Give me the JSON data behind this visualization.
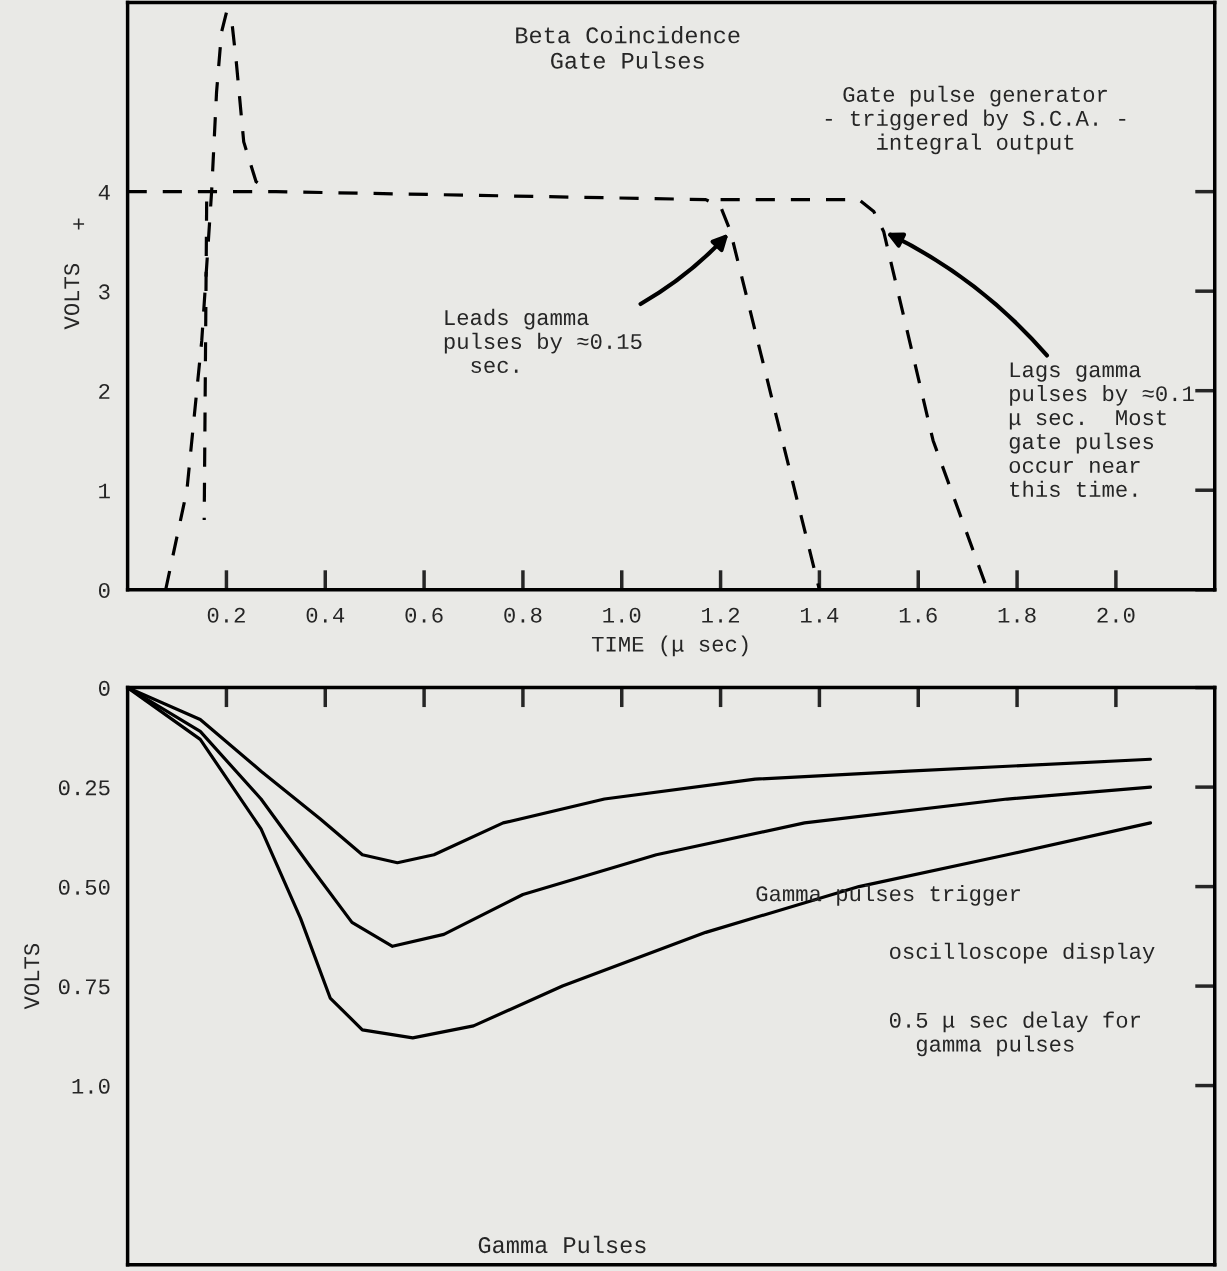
{
  "chart_data": [
    {
      "type": "line",
      "title": "Beta Coincidence\nGate Pulses",
      "xlabel": "TIME (μ sec)",
      "ylabel": "VOLTS",
      "xlim": [
        0,
        2.2
      ],
      "ylim": [
        0,
        5.9
      ],
      "xticks": [
        0.2,
        0.4,
        0.6,
        0.8,
        {
          "value": 1.0,
          "label": "1.0"
        },
        1.2,
        1.4,
        1.6,
        1.8,
        {
          "value": 2.0,
          "label": "2.0"
        }
      ],
      "yticks": [
        0,
        1,
        2,
        3,
        4
      ],
      "grid": false,
      "legend": false,
      "line_style": "dashed",
      "marker": "none",
      "series": [
        {
          "color": "#000000",
          "x": [
            0.077,
            0.12,
            0.15,
            0.17,
            0.18,
            0.19,
            0.2,
            0.21,
            0.22,
            0.235,
            0.26,
            0.29
          ],
          "values": [
            0,
            1,
            2.5,
            4,
            5,
            5.6,
            5.8,
            5.75,
            5.3,
            4.5,
            4.1,
            4.0
          ]
        },
        {
          "color": "#000000",
          "x": [
            0,
            0.3,
            1.17,
            1.2,
            1.22,
            1.31,
            1.4
          ],
          "values": [
            4.0,
            4.0,
            3.92,
            3.85,
            3.6,
            1.8,
            0
          ]
        },
        {
          "color": "#000000",
          "x": [
            1.2,
            1.48,
            1.51,
            1.53,
            1.63,
            1.74
          ],
          "values": [
            3.92,
            3.92,
            3.8,
            3.6,
            1.5,
            0
          ]
        },
        {
          "color": "#000000",
          "x": [
            0.16,
            0.155
          ],
          "values": [
            3.9,
            0.7
          ]
        }
      ],
      "annotations": [
        "Gate pulse generator\n- triggered by S.C.A. -\nintegral output",
        {
          "text": "Leads gamma\npulses by ≈0.15\n  sec.",
          "x": 1.22,
          "y": 3.6
        },
        {
          "text": "Lags gamma\npulses by ≈0.1\nμ sec.  Most\ngate pulses\noccur near\nthis time.",
          "x": 1.53,
          "y": 3.6
        },
        "+"
      ]
    },
    {
      "type": "line",
      "title": "Gamma Pulses",
      "ylabel": "VOLTS",
      "xlim": [
        0,
        2.2
      ],
      "ylim": [
        1.45,
        0
      ],
      "xticks": [
        {
          "value": 0.2,
          "label": null
        },
        {
          "value": 0.4,
          "label": null
        },
        {
          "value": 0.6,
          "label": null
        },
        {
          "value": 0.8,
          "label": null
        },
        {
          "value": 1.0,
          "label": null
        },
        {
          "value": 1.2,
          "label": null
        },
        {
          "value": 1.4,
          "label": null
        },
        {
          "value": 1.6,
          "label": null
        },
        {
          "value": 1.8,
          "label": null
        },
        {
          "value": 2.0,
          "label": null
        }
      ],
      "yticks": [
        0,
        0.25,
        {
          "value": 0.5,
          "label": "0.50"
        },
        0.75,
        {
          "value": 1.0,
          "label": "1.0"
        }
      ],
      "tick_labels": "y",
      "grid": false,
      "legend": false,
      "line_style": "solid",
      "marker": "none",
      "series": [
        {
          "color": "#000000",
          "x": [
            0,
            0.147,
            0.27,
            0.39,
            0.475,
            0.546,
            0.62,
            0.76,
            0.965,
            1.27,
            1.58,
            2.07
          ],
          "values": [
            0,
            0.08,
            0.21,
            0.33,
            0.42,
            0.44,
            0.42,
            0.34,
            0.28,
            0.23,
            0.21,
            0.18
          ]
        },
        {
          "color": "#000000",
          "x": [
            0,
            0.147,
            0.27,
            0.37,
            0.454,
            0.536,
            0.64,
            0.8,
            1.07,
            1.37,
            1.78,
            2.07
          ],
          "values": [
            0,
            0.11,
            0.28,
            0.45,
            0.59,
            0.65,
            0.62,
            0.52,
            0.42,
            0.34,
            0.28,
            0.25
          ]
        },
        {
          "color": "#000000",
          "x": [
            0,
            0.147,
            0.27,
            0.35,
            0.41,
            0.475,
            0.577,
            0.7,
            0.88,
            1.17,
            1.48,
            1.78,
            2.07
          ],
          "values": [
            0,
            0.13,
            0.355,
            0.58,
            0.78,
            0.86,
            0.88,
            0.85,
            0.75,
            0.615,
            0.5,
            0.42,
            0.34
          ]
        }
      ],
      "annotations": [
        "Gamma pulses trigger",
        "oscilloscope display",
        "0.5 μ sec delay for\n  gamma pulses"
      ]
    }
  ]
}
